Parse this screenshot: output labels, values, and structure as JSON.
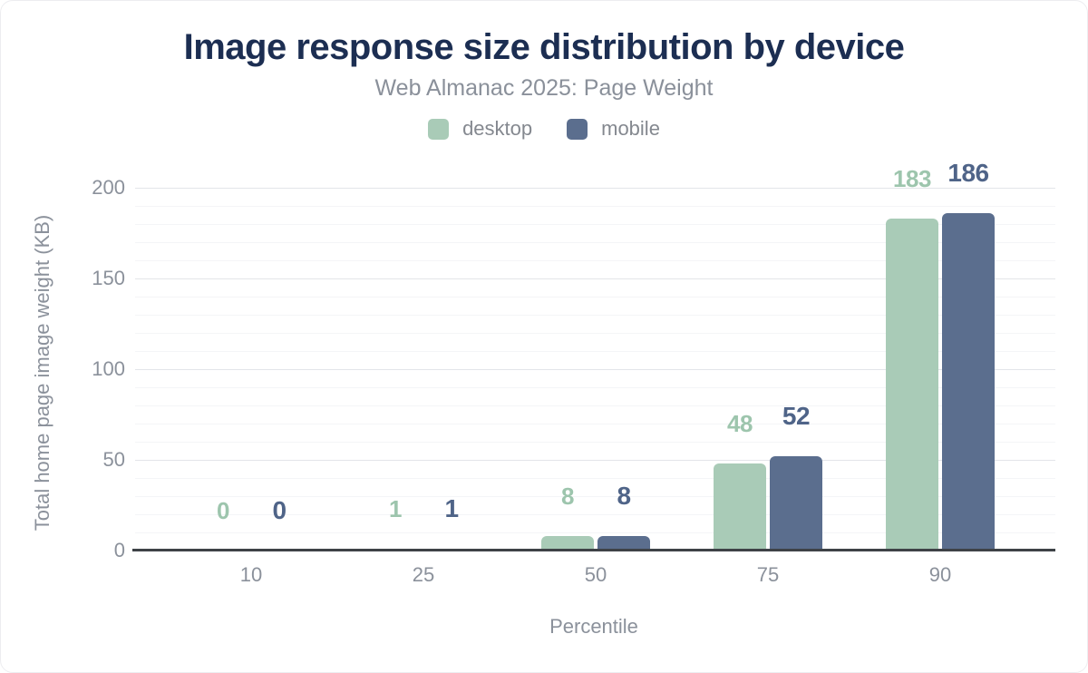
{
  "chart_data": {
    "type": "bar",
    "title": "Image response size distribution by device",
    "subtitle": "Web Almanac 2025: Page Weight",
    "xlabel": "Percentile",
    "ylabel": "Total home page image weight (KB)",
    "categories": [
      "10",
      "25",
      "50",
      "75",
      "90"
    ],
    "series": [
      {
        "name": "desktop",
        "color": "#a9cbb7",
        "label_color": "#9dc5ad",
        "values": [
          0,
          1,
          8,
          48,
          183
        ]
      },
      {
        "name": "mobile",
        "color": "#5b6e8e",
        "label_color": "#4f6488",
        "values": [
          0,
          1,
          8,
          52,
          186
        ]
      }
    ],
    "ylim": [
      0,
      200
    ],
    "y_ticks": [
      0,
      50,
      100,
      150,
      200
    ],
    "y_minor_step": 10,
    "grid": true,
    "legend_position": "top",
    "bar_value_labels": true
  },
  "colors": {
    "title": "#1c2e52",
    "muted_text": "#8b919b",
    "axis_line": "#3e4247",
    "grid_major": "#e3e5e9",
    "grid_minor": "#f4f5f7",
    "desktop": "#a9cbb7",
    "mobile": "#5b6e8e"
  }
}
